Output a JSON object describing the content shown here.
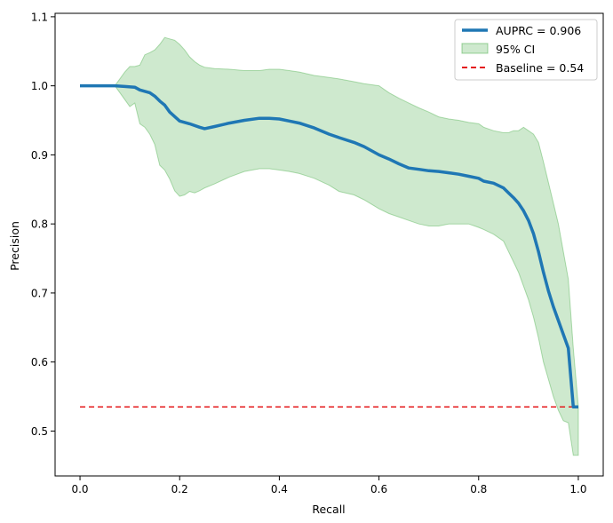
{
  "chart_data": {
    "type": "line",
    "title": "",
    "xlabel": "Recall",
    "ylabel": "Precision",
    "xlim": [
      -0.05,
      1.05
    ],
    "ylim": [
      0.435,
      1.105
    ],
    "xticks": [
      0.0,
      0.2,
      0.4,
      0.6,
      0.8,
      1.0
    ],
    "xtick_labels": [
      "0.0",
      "0.2",
      "0.4",
      "0.6",
      "0.8",
      "1.0"
    ],
    "yticks": [
      0.5,
      0.6,
      0.7,
      0.8,
      0.9,
      1.0,
      1.1
    ],
    "ytick_labels": [
      "0.5",
      "0.6",
      "0.7",
      "0.8",
      "0.9",
      "1.0",
      "1.1"
    ],
    "legend_position": "top-right",
    "colors": {
      "curve": "#1f77b4",
      "ci_fill": "#2ca02c",
      "ci_edge": "#2ca02c",
      "baseline": "#e41a1c"
    },
    "series": [
      {
        "name": "AUPRC = 0.906",
        "kind": "line",
        "x": [
          0.0,
          0.02,
          0.05,
          0.07,
          0.09,
          0.11,
          0.12,
          0.14,
          0.15,
          0.16,
          0.17,
          0.18,
          0.2,
          0.22,
          0.24,
          0.25,
          0.27,
          0.3,
          0.33,
          0.36,
          0.38,
          0.4,
          0.42,
          0.44,
          0.47,
          0.5,
          0.52,
          0.55,
          0.57,
          0.6,
          0.62,
          0.64,
          0.66,
          0.68,
          0.7,
          0.72,
          0.74,
          0.76,
          0.78,
          0.8,
          0.81,
          0.83,
          0.85,
          0.86,
          0.87,
          0.88,
          0.89,
          0.9,
          0.91,
          0.92,
          0.93,
          0.94,
          0.95,
          0.96,
          0.97,
          0.98,
          0.99,
          1.0
        ],
        "y": [
          1.0,
          1.0,
          1.0,
          1.0,
          0.999,
          0.998,
          0.994,
          0.99,
          0.985,
          0.978,
          0.972,
          0.962,
          0.949,
          0.945,
          0.94,
          0.938,
          0.941,
          0.946,
          0.95,
          0.953,
          0.953,
          0.952,
          0.949,
          0.946,
          0.939,
          0.93,
          0.925,
          0.918,
          0.912,
          0.9,
          0.894,
          0.887,
          0.881,
          0.879,
          0.877,
          0.876,
          0.874,
          0.872,
          0.869,
          0.866,
          0.862,
          0.859,
          0.852,
          0.845,
          0.838,
          0.83,
          0.819,
          0.805,
          0.786,
          0.76,
          0.73,
          0.703,
          0.68,
          0.66,
          0.64,
          0.62,
          0.535,
          0.535
        ]
      },
      {
        "name": "95% CI",
        "kind": "band",
        "x": [
          0.07,
          0.09,
          0.1,
          0.11,
          0.12,
          0.13,
          0.14,
          0.15,
          0.16,
          0.17,
          0.18,
          0.19,
          0.2,
          0.21,
          0.22,
          0.23,
          0.24,
          0.25,
          0.27,
          0.3,
          0.33,
          0.36,
          0.38,
          0.4,
          0.42,
          0.44,
          0.47,
          0.5,
          0.52,
          0.55,
          0.57,
          0.6,
          0.62,
          0.64,
          0.66,
          0.68,
          0.7,
          0.72,
          0.74,
          0.76,
          0.78,
          0.8,
          0.81,
          0.83,
          0.85,
          0.86,
          0.87,
          0.88,
          0.89,
          0.9,
          0.91,
          0.92,
          0.93,
          0.94,
          0.95,
          0.96,
          0.97,
          0.98,
          0.99,
          1.0
        ],
        "upper": [
          1.0,
          1.02,
          1.028,
          1.028,
          1.03,
          1.045,
          1.048,
          1.052,
          1.06,
          1.07,
          1.068,
          1.066,
          1.06,
          1.052,
          1.042,
          1.035,
          1.03,
          1.027,
          1.025,
          1.024,
          1.022,
          1.022,
          1.024,
          1.024,
          1.022,
          1.02,
          1.015,
          1.012,
          1.01,
          1.006,
          1.003,
          1.0,
          0.99,
          0.982,
          0.975,
          0.968,
          0.962,
          0.955,
          0.952,
          0.95,
          0.947,
          0.945,
          0.94,
          0.935,
          0.932,
          0.932,
          0.935,
          0.935,
          0.94,
          0.935,
          0.93,
          0.918,
          0.89,
          0.86,
          0.83,
          0.8,
          0.76,
          0.72,
          0.62,
          0.535
        ],
        "lower": [
          1.0,
          0.98,
          0.97,
          0.975,
          0.945,
          0.94,
          0.93,
          0.915,
          0.885,
          0.878,
          0.865,
          0.848,
          0.84,
          0.842,
          0.847,
          0.845,
          0.848,
          0.852,
          0.858,
          0.868,
          0.876,
          0.88,
          0.88,
          0.878,
          0.876,
          0.873,
          0.866,
          0.856,
          0.847,
          0.842,
          0.835,
          0.822,
          0.815,
          0.81,
          0.805,
          0.8,
          0.797,
          0.797,
          0.8,
          0.8,
          0.8,
          0.795,
          0.792,
          0.785,
          0.775,
          0.76,
          0.745,
          0.73,
          0.71,
          0.69,
          0.665,
          0.635,
          0.6,
          0.575,
          0.55,
          0.53,
          0.515,
          0.512,
          0.465,
          0.465
        ]
      },
      {
        "name": "Baseline = 0.54",
        "kind": "dashed",
        "x": [
          0.0,
          1.0
        ],
        "y": [
          0.535,
          0.535
        ]
      }
    ]
  }
}
